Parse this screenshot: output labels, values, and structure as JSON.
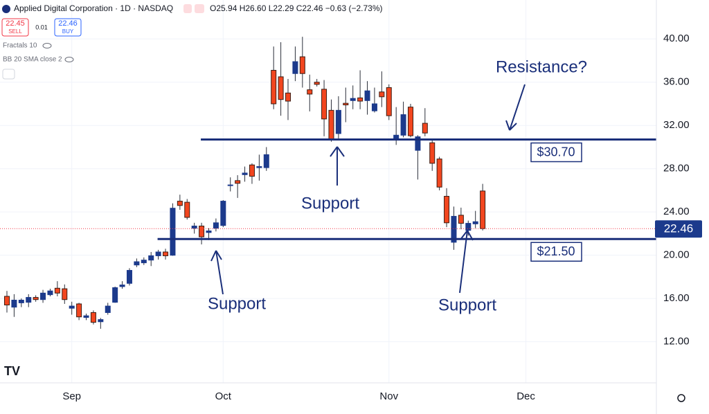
{
  "chart_data": {
    "type": "candlestick",
    "title": "Applied Digital Corporation · 1D · NASDAQ",
    "ohlc_text": "O25.94 H26.60 L22.29 C22.46 −0.63 (−2.73%)",
    "sell": {
      "price": "22.45",
      "label": "SELL"
    },
    "spread": "0.01",
    "buy": {
      "price": "22.46",
      "label": "BUY"
    },
    "indicators": [
      "Fractals 10",
      "BB 20 SMA close 2"
    ],
    "up_color": "#1c3a8c",
    "down_color": "#f2461f",
    "open": [
      16.2,
      15.2,
      15.6,
      15.65,
      16.1,
      15.9,
      16.35,
      16.95,
      16.9,
      15.1,
      15.5,
      14.25,
      14.7,
      13.85,
      14.7,
      15.65,
      17.1,
      17.4,
      19.1,
      19.3,
      19.55,
      19.95,
      20.3,
      20.0,
      25.0,
      24.9,
      22.5,
      22.7,
      22.1,
      22.5,
      22.75,
      26.45,
      26.9,
      27.45,
      28.35,
      28.1,
      28.1,
      37.1,
      36.5,
      35.0,
      36.8,
      38.35,
      35.3,
      36.0,
      35.35,
      33.4,
      31.25,
      34.05,
      34.3,
      34.55,
      34.3,
      33.35,
      35.1,
      35.5,
      30.8,
      31.1,
      33.7,
      29.7,
      32.2,
      30.4,
      28.9,
      25.45,
      21.2,
      23.7,
      22.3,
      22.9,
      25.94
    ],
    "high": [
      16.7,
      16.4,
      16.0,
      16.4,
      16.3,
      16.8,
      16.9,
      17.6,
      17.3,
      15.7,
      15.6,
      14.6,
      14.9,
      14.2,
      15.6,
      17.1,
      17.6,
      18.8,
      19.7,
      19.8,
      20.3,
      20.5,
      20.6,
      24.8,
      25.6,
      25.2,
      23.0,
      23.0,
      22.5,
      23.4,
      25.1,
      27.2,
      27.4,
      28.2,
      28.5,
      29.3,
      30.0,
      39.3,
      39.7,
      36.3,
      39.3,
      40.2,
      36.7,
      36.3,
      36.2,
      34.4,
      34.7,
      35.5,
      35.7,
      37.1,
      36.1,
      35.5,
      37.0,
      35.8,
      33.7,
      34.2,
      34.0,
      31.1,
      33.6,
      30.6,
      29.1,
      26.2,
      24.5,
      24.4,
      23.2,
      24.1,
      26.6
    ],
    "low": [
      14.7,
      14.3,
      15.2,
      15.2,
      15.7,
      15.6,
      16.2,
      16.2,
      15.5,
      14.5,
      14.0,
      14.0,
      13.6,
      13.2,
      14.5,
      15.6,
      16.9,
      17.2,
      18.9,
      19.1,
      19.0,
      19.6,
      19.6,
      19.95,
      24.2,
      23.3,
      22.0,
      21.0,
      21.4,
      22.2,
      22.6,
      25.9,
      25.3,
      26.8,
      26.6,
      26.9,
      27.8,
      33.5,
      32.9,
      32.5,
      36.1,
      35.5,
      33.3,
      35.6,
      31.0,
      30.5,
      30.8,
      32.3,
      33.5,
      33.5,
      33.0,
      33.2,
      33.7,
      32.5,
      30.2,
      30.9,
      30.9,
      27.0,
      31.0,
      27.8,
      26.0,
      22.6,
      20.5,
      22.4,
      21.8,
      22.5,
      22.29
    ],
    "close": [
      15.4,
      15.85,
      15.85,
      16.1,
      15.9,
      16.5,
      16.7,
      16.5,
      15.9,
      15.3,
      14.3,
      14.4,
      13.8,
      14.05,
      15.3,
      17.0,
      17.25,
      18.6,
      19.4,
      19.55,
      19.95,
      20.3,
      19.95,
      24.35,
      24.6,
      23.5,
      22.7,
      21.7,
      22.25,
      23.0,
      25.0,
      26.5,
      26.65,
      27.6,
      27.3,
      28.2,
      29.3,
      34.0,
      34.4,
      34.25,
      37.9,
      36.8,
      34.9,
      35.8,
      32.6,
      30.65,
      33.4,
      33.9,
      34.5,
      34.25,
      35.2,
      34.0,
      34.65,
      32.9,
      31.1,
      33.0,
      31.05,
      30.95,
      31.3,
      28.5,
      26.3,
      23.0,
      23.6,
      22.95,
      22.95,
      23.1,
      22.46
    ],
    "xlim": [
      -0.96,
      90.1
    ],
    "xticks": [
      {
        "value": 9,
        "label": "Sep"
      },
      {
        "value": 30,
        "label": "Oct"
      },
      {
        "value": 53,
        "label": "Nov"
      },
      {
        "value": 72,
        "label": "Dec"
      }
    ],
    "ylim": [
      8.2,
      43.6
    ],
    "yticks": [
      {
        "value": 12,
        "label": "12.00"
      },
      {
        "value": 16,
        "label": "16.00"
      },
      {
        "value": 20,
        "label": "20.00"
      },
      {
        "value": 24,
        "label": "24.00"
      },
      {
        "value": 28,
        "label": "28.00"
      },
      {
        "value": 32,
        "label": "32.00"
      },
      {
        "value": 36,
        "label": "36.00"
      },
      {
        "value": 40,
        "label": "40.00"
      }
    ],
    "grid": true,
    "last_price": 22.46,
    "levels": [
      {
        "value": 30.7,
        "label": "$30.70",
        "x_start": 26.9
      },
      {
        "value": 21.5,
        "label": "$21.50",
        "x_start": 20.9
      }
    ],
    "annotations": [
      "Resistance?",
      "Support",
      "Support",
      "Support"
    ]
  }
}
